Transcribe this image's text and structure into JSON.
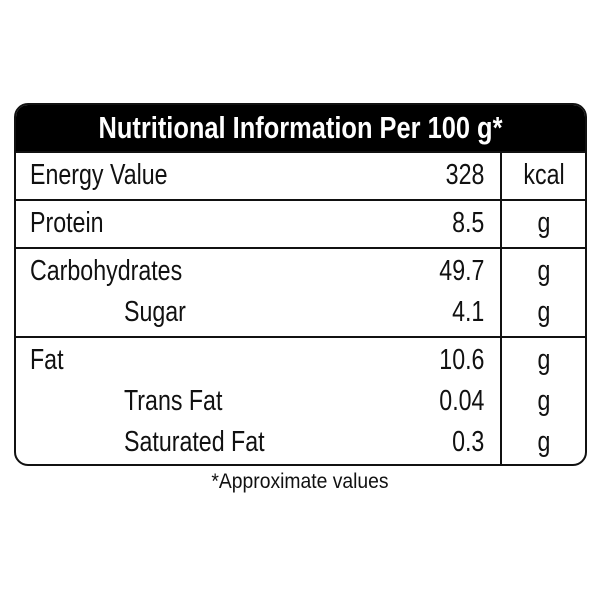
{
  "header": {
    "title": "Nutritional Information Per 100 g*"
  },
  "table": {
    "groups": [
      [
        [
          "Energy Value",
          328,
          "kcal"
        ]
      ],
      [
        [
          "Protein",
          8.5,
          "g"
        ]
      ],
      [
        [
          "Carbohydrates",
          49.7,
          "g"
        ],
        [
          "Sugar",
          4.1,
          "g"
        ]
      ],
      [
        [
          "Fat",
          10.6,
          "g"
        ],
        [
          "Trans Fat",
          0.04,
          "g"
        ],
        [
          "Saturated Fat",
          0.3,
          "g"
        ]
      ]
    ]
  },
  "footnote": "*Approximate values"
}
